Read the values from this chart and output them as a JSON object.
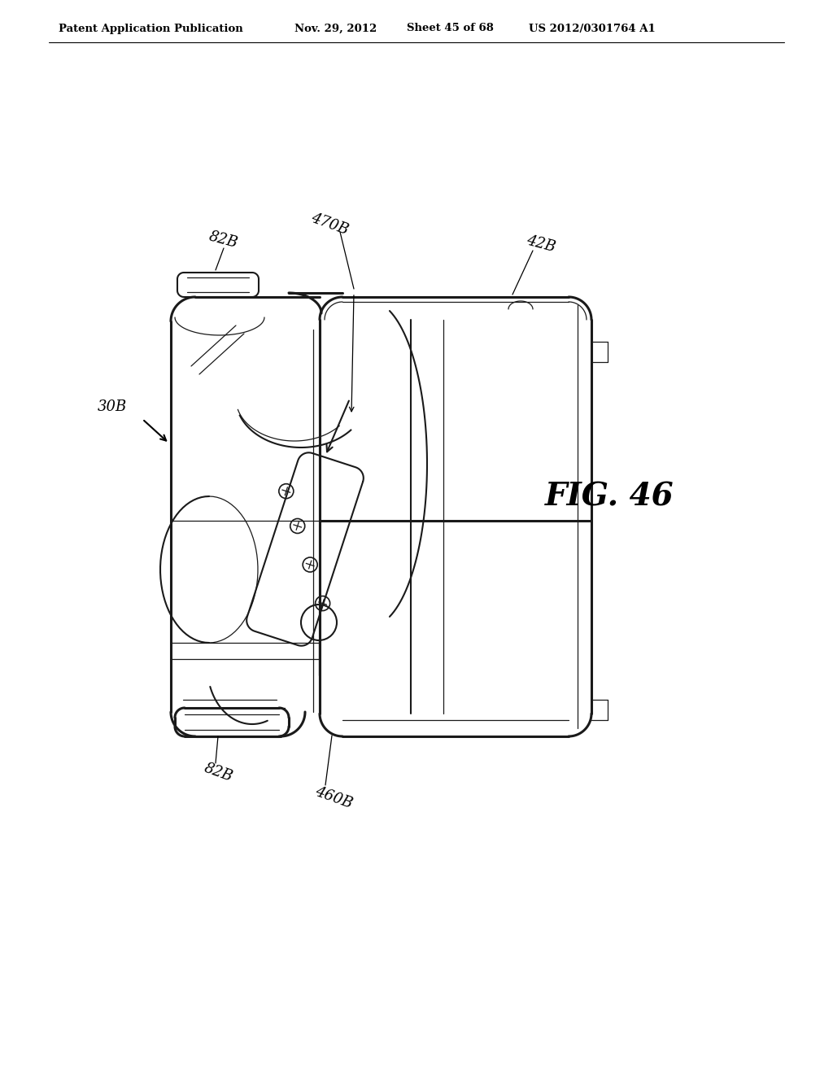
{
  "background_color": "#ffffff",
  "header_text": "Patent Application Publication",
  "header_date": "Nov. 29, 2012",
  "header_sheet": "Sheet 45 of 68",
  "header_patent": "US 2012/0301764 A1",
  "fig_label": "FIG. 46",
  "label_30B": "30B",
  "label_82B_top": "82B",
  "label_470B": "470B",
  "label_42B": "42B",
  "label_82B_bot": "82B",
  "label_460B": "460B",
  "line_color": "#1a1a1a",
  "lw_thin": 0.9,
  "lw_med": 1.5,
  "lw_thick": 2.2
}
